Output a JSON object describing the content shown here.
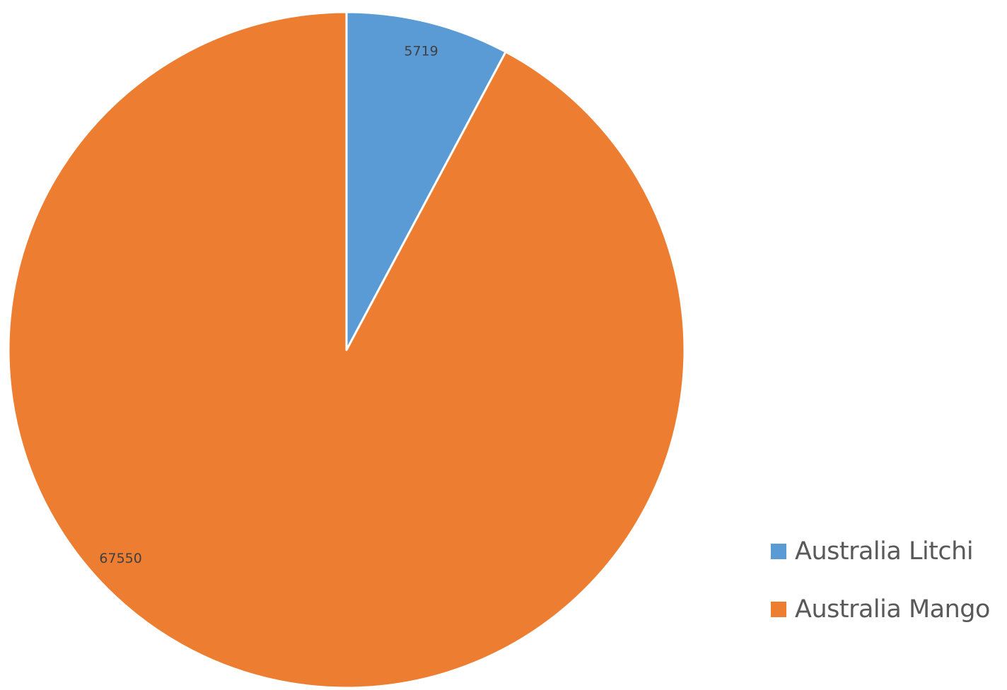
{
  "chart_data": {
    "type": "pie",
    "categories": [
      "Australia Litchi",
      "Australia Mango"
    ],
    "values": [
      5719,
      67550
    ],
    "colors": [
      "#5b9bd5",
      "#ed7d31"
    ],
    "data_labels": [
      "5719",
      "67550"
    ],
    "start_angle_deg": 0,
    "direction": "clockwise",
    "legend_position": "bottom-right",
    "slice_border_color": "#ffffff"
  }
}
